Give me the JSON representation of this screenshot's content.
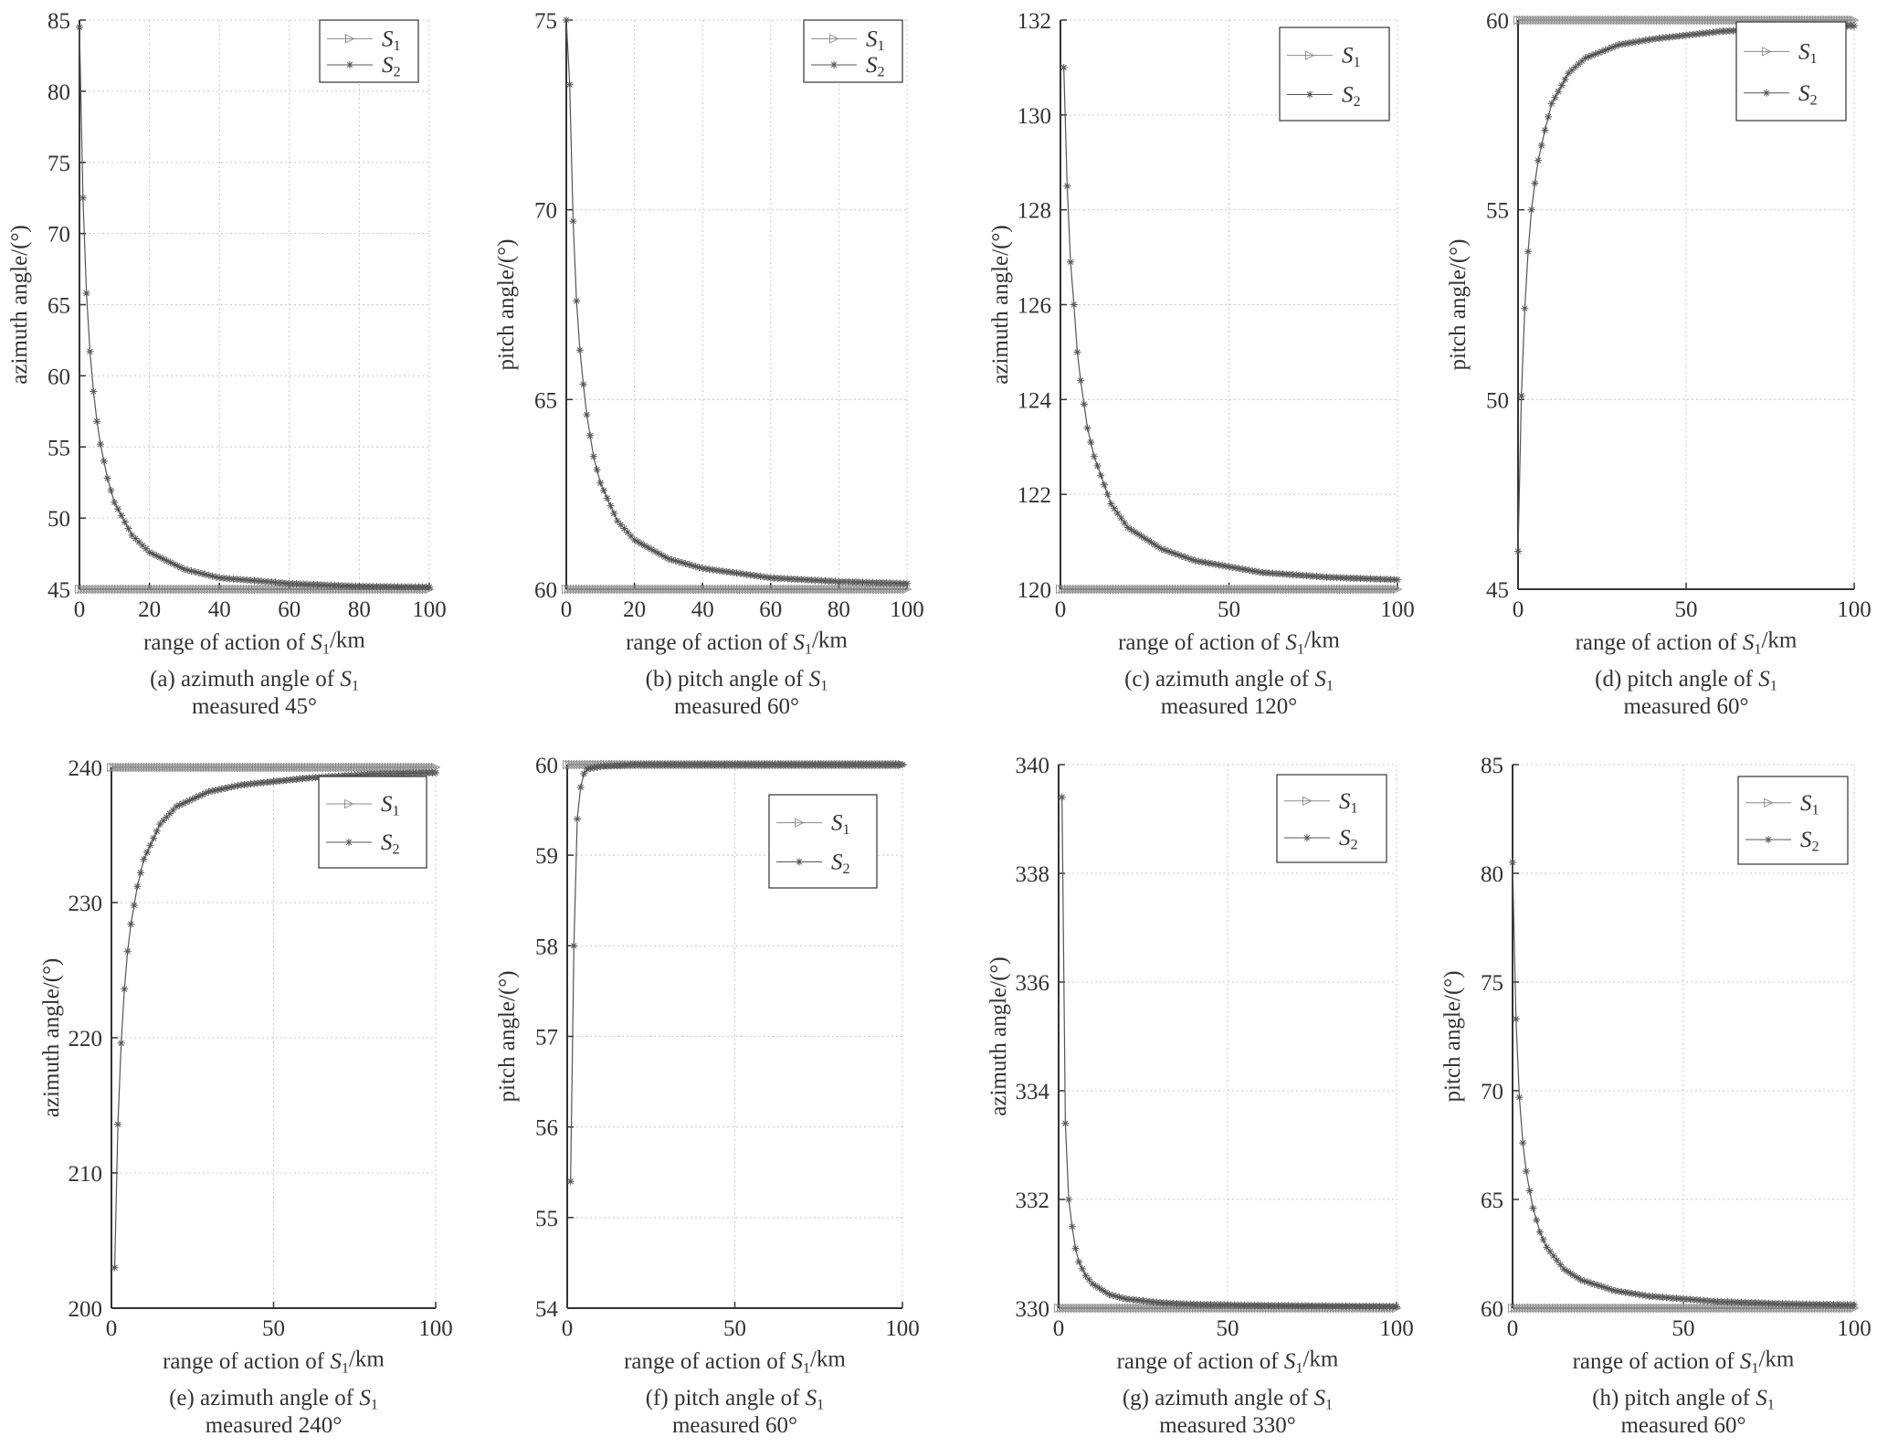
{
  "series_names": [
    "S1",
    "S2"
  ],
  "series_glyphs": [
    "triangle-right-marker",
    "asterisk-marker"
  ],
  "colors": {
    "axis": "#333333",
    "grid": "#c8c8c8",
    "s1": "#8a8a8a",
    "s2": "#555555"
  },
  "chart_data": [
    {
      "type": "line",
      "caption_line1": "(a) azimuth angle of S1",
      "caption_line2": "measured 45°",
      "xlabel": "range of action of S1/km",
      "ylabel": "azimuth angle/(°)",
      "xlim": [
        0,
        100
      ],
      "ylim": [
        45,
        85
      ],
      "xticks": [
        0,
        20,
        40,
        60,
        80,
        100
      ],
      "yticks": [
        45,
        50,
        55,
        60,
        65,
        70,
        75,
        80,
        85
      ],
      "grid": true,
      "legend": "top-right",
      "series": [
        {
          "name": "S1",
          "values": [
            [
              0,
              45
            ],
            [
              100,
              45
            ]
          ]
        },
        {
          "name": "S2",
          "values": [
            [
              0,
              84.5
            ],
            [
              1,
              72.5
            ],
            [
              2,
              65.8
            ],
            [
              3,
              61.7
            ],
            [
              4,
              58.9
            ],
            [
              5,
              56.8
            ],
            [
              6,
              55.2
            ],
            [
              8,
              52.8
            ],
            [
              10,
              51.1
            ],
            [
              15,
              48.8
            ],
            [
              20,
              47.6
            ],
            [
              30,
              46.4
            ],
            [
              40,
              45.8
            ],
            [
              60,
              45.4
            ],
            [
              80,
              45.2
            ],
            [
              100,
              45.15
            ]
          ]
        }
      ]
    },
    {
      "type": "line",
      "caption_line1": "(b) pitch angle of S1",
      "caption_line2": "measured 60°",
      "xlabel": "range of action of S1/km",
      "ylabel": "pitch angle/(°)",
      "xlim": [
        0,
        100
      ],
      "ylim": [
        60,
        75
      ],
      "xticks": [
        0,
        20,
        40,
        60,
        80,
        100
      ],
      "yticks": [
        60,
        65,
        70,
        75
      ],
      "grid": true,
      "legend": "top-right",
      "series": [
        {
          "name": "S1",
          "values": [
            [
              0,
              60
            ],
            [
              100,
              60
            ]
          ]
        },
        {
          "name": "S2",
          "values": [
            [
              0,
              75
            ],
            [
              1,
              73.3
            ],
            [
              2,
              69.7
            ],
            [
              3,
              67.6
            ],
            [
              4,
              66.3
            ],
            [
              5,
              65.4
            ],
            [
              6,
              64.6
            ],
            [
              8,
              63.5
            ],
            [
              10,
              62.8
            ],
            [
              15,
              61.8
            ],
            [
              20,
              61.3
            ],
            [
              30,
              60.8
            ],
            [
              40,
              60.55
            ],
            [
              60,
              60.3
            ],
            [
              80,
              60.2
            ],
            [
              100,
              60.15
            ]
          ]
        }
      ]
    },
    {
      "type": "line",
      "caption_line1": "(c) azimuth angle of S1",
      "caption_line2": "measured 120°",
      "xlabel": "range of action of S1/km",
      "ylabel": "azimuth angle/(°)",
      "xlim": [
        0,
        100
      ],
      "ylim": [
        120,
        132
      ],
      "xticks": [
        0,
        50,
        100
      ],
      "yticks": [
        120,
        122,
        124,
        126,
        128,
        130,
        132
      ],
      "grid": true,
      "legend": "top-right",
      "series": [
        {
          "name": "S1",
          "values": [
            [
              0,
              120
            ],
            [
              100,
              120
            ]
          ]
        },
        {
          "name": "S2",
          "values": [
            [
              1,
              131
            ],
            [
              2,
              128.5
            ],
            [
              3,
              126.9
            ],
            [
              4,
              126
            ],
            [
              5,
              125
            ],
            [
              6,
              124.4
            ],
            [
              8,
              123.4
            ],
            [
              10,
              122.8
            ],
            [
              15,
              121.8
            ],
            [
              20,
              121.3
            ],
            [
              30,
              120.85
            ],
            [
              40,
              120.6
            ],
            [
              60,
              120.35
            ],
            [
              80,
              120.25
            ],
            [
              100,
              120.2
            ]
          ]
        }
      ]
    },
    {
      "type": "line",
      "caption_line1": "(d) pitch angle of S1",
      "caption_line2": "measured 60°",
      "xlabel": "range of action of S1/km",
      "ylabel": "pitch angle/(°)",
      "xlim": [
        0,
        100
      ],
      "ylim": [
        45,
        60
      ],
      "xticks": [
        0,
        50,
        100
      ],
      "yticks": [
        45,
        50,
        55,
        60
      ],
      "grid": true,
      "legend": "top-right",
      "series": [
        {
          "name": "S1",
          "values": [
            [
              0,
              60
            ],
            [
              100,
              60
            ]
          ]
        },
        {
          "name": "S2",
          "values": [
            [
              0,
              46
            ],
            [
              1,
              50.1
            ],
            [
              2,
              52.4
            ],
            [
              3,
              53.9
            ],
            [
              4,
              55
            ],
            [
              5,
              55.7
            ],
            [
              6,
              56.3
            ],
            [
              8,
              57.1
            ],
            [
              10,
              57.8
            ],
            [
              15,
              58.6
            ],
            [
              20,
              59
            ],
            [
              30,
              59.35
            ],
            [
              40,
              59.5
            ],
            [
              60,
              59.7
            ],
            [
              80,
              59.8
            ],
            [
              100,
              59.85
            ]
          ]
        }
      ]
    },
    {
      "type": "line",
      "caption_line1": "(e) azimuth angle of S1",
      "caption_line2": "measured 240°",
      "xlabel": "range of action of S1/km",
      "ylabel": "azimuth angle/(°)",
      "xlim": [
        0,
        100
      ],
      "ylim": [
        200,
        240
      ],
      "xticks": [
        0,
        50,
        100
      ],
      "yticks": [
        200,
        210,
        220,
        230,
        240
      ],
      "grid": true,
      "legend": "top-right",
      "series": [
        {
          "name": "S1",
          "values": [
            [
              0,
              240
            ],
            [
              100,
              240
            ]
          ]
        },
        {
          "name": "S2",
          "values": [
            [
              1,
              203
            ],
            [
              2,
              213.6
            ],
            [
              3,
              219.6
            ],
            [
              4,
              223.6
            ],
            [
              5,
              226.4
            ],
            [
              6,
              228.4
            ],
            [
              8,
              231.2
            ],
            [
              10,
              233.2
            ],
            [
              15,
              235.8
            ],
            [
              20,
              237.1
            ],
            [
              30,
              238.2
            ],
            [
              40,
              238.7
            ],
            [
              60,
              239.2
            ],
            [
              80,
              239.5
            ],
            [
              100,
              239.6
            ]
          ]
        }
      ]
    },
    {
      "type": "line",
      "caption_line1": "(f) pitch angle of S1",
      "caption_line2": "measured 60°",
      "xlabel": "range of action of S1/km",
      "ylabel": "pitch angle/(°)",
      "xlim": [
        0,
        100
      ],
      "ylim": [
        54,
        60
      ],
      "xticks": [
        0,
        50,
        100
      ],
      "yticks": [
        54,
        55,
        56,
        57,
        58,
        59,
        60
      ],
      "grid": true,
      "legend": "top-right",
      "series": [
        {
          "name": "S1",
          "values": [
            [
              0,
              60
            ],
            [
              100,
              60
            ]
          ]
        },
        {
          "name": "S2",
          "values": [
            [
              1,
              55.4
            ],
            [
              2,
              58
            ],
            [
              3,
              59.4
            ],
            [
              4,
              59.75
            ],
            [
              5,
              59.9
            ],
            [
              6,
              59.95
            ],
            [
              10,
              59.98
            ],
            [
              20,
              60
            ],
            [
              100,
              60
            ]
          ]
        }
      ]
    },
    {
      "type": "line",
      "caption_line1": "(g) azimuth angle of S1",
      "caption_line2": "measured 330°",
      "xlabel": "range of action of S1/km",
      "ylabel": "azimuth angle/(°)",
      "xlim": [
        0,
        100
      ],
      "ylim": [
        330,
        340
      ],
      "xticks": [
        0,
        50,
        100
      ],
      "yticks": [
        330,
        332,
        334,
        336,
        338,
        340
      ],
      "grid": true,
      "legend": "top-right",
      "series": [
        {
          "name": "S1",
          "values": [
            [
              0,
              330
            ],
            [
              100,
              330
            ]
          ]
        },
        {
          "name": "S2",
          "values": [
            [
              1,
              339.4
            ],
            [
              2,
              333.4
            ],
            [
              3,
              332
            ],
            [
              4,
              331.5
            ],
            [
              5,
              331.1
            ],
            [
              6,
              330.85
            ],
            [
              8,
              330.6
            ],
            [
              10,
              330.45
            ],
            [
              15,
              330.25
            ],
            [
              20,
              330.17
            ],
            [
              30,
              330.1
            ],
            [
              40,
              330.07
            ],
            [
              60,
              330.05
            ],
            [
              80,
              330.04
            ],
            [
              100,
              330.03
            ]
          ]
        }
      ]
    },
    {
      "type": "line",
      "caption_line1": "(h) pitch angle of S1",
      "caption_line2": "measured 60°",
      "xlabel": "range of action of S1/km",
      "ylabel": "pitch angle/(°)",
      "xlim": [
        0,
        100
      ],
      "ylim": [
        60,
        85
      ],
      "xticks": [
        0,
        50,
        100
      ],
      "yticks": [
        60,
        65,
        70,
        75,
        80,
        85
      ],
      "grid": true,
      "legend": "top-right",
      "series": [
        {
          "name": "S1",
          "values": [
            [
              0,
              60
            ],
            [
              100,
              60
            ]
          ]
        },
        {
          "name": "S2",
          "values": [
            [
              0,
              80.5
            ],
            [
              1,
              73.3
            ],
            [
              2,
              69.7
            ],
            [
              3,
              67.6
            ],
            [
              4,
              66.3
            ],
            [
              5,
              65.4
            ],
            [
              6,
              64.6
            ],
            [
              8,
              63.5
            ],
            [
              10,
              62.8
            ],
            [
              15,
              61.8
            ],
            [
              20,
              61.3
            ],
            [
              30,
              60.8
            ],
            [
              40,
              60.55
            ],
            [
              60,
              60.3
            ],
            [
              80,
              60.2
            ],
            [
              100,
              60.15
            ]
          ]
        }
      ]
    }
  ]
}
